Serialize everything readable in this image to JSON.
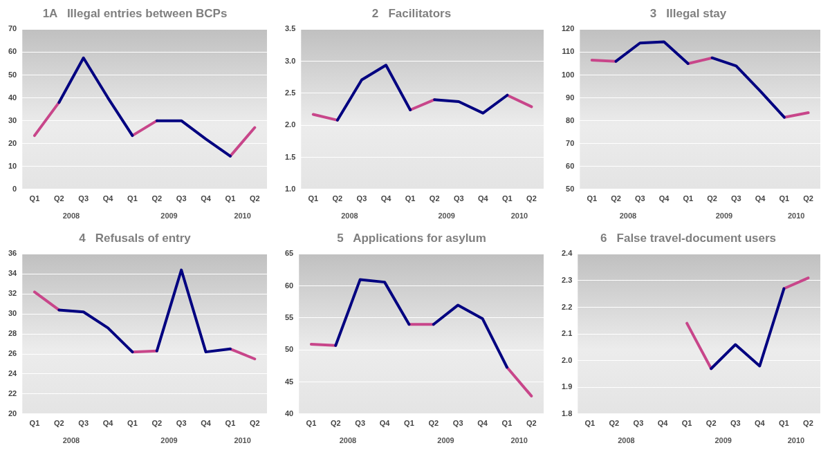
{
  "chart_data": [
    {
      "type": "line",
      "title": "1A   Illegal entries between BCPs",
      "categories": [
        "Q1",
        "Q2",
        "Q3",
        "Q4",
        "Q1",
        "Q2",
        "Q3",
        "Q4",
        "Q1",
        "Q2"
      ],
      "annotations": [
        "2008",
        "2009",
        "2010"
      ],
      "ylim": [
        0,
        70
      ],
      "yticks": [
        0,
        10,
        20,
        30,
        40,
        50,
        60,
        70
      ],
      "grid": "y",
      "legend": false,
      "marker": "none",
      "series": [
        {
          "color": "#000080",
          "values": [
            null,
            38,
            57.5,
            40,
            23.5,
            null,
            null,
            null,
            null,
            null
          ]
        },
        {
          "color": "#000080",
          "values": [
            null,
            null,
            null,
            null,
            null,
            30,
            30,
            22,
            14.5,
            null
          ]
        },
        {
          "color": "#c8468a",
          "values": [
            23.5,
            38,
            null,
            null,
            23.5,
            30,
            null,
            null,
            14.5,
            27
          ]
        }
      ]
    },
    {
      "type": "line",
      "title": "2   Facilitators",
      "categories": [
        "Q1",
        "Q2",
        "Q3",
        "Q4",
        "Q1",
        "Q2",
        "Q3",
        "Q4",
        "Q1",
        "Q2"
      ],
      "annotations": [
        "2008",
        "2009",
        "2010"
      ],
      "ylim": [
        1.0,
        3.5
      ],
      "yticks": [
        {
          "value": 1,
          "label": "1.0"
        },
        1.5,
        {
          "value": 2,
          "label": "2.0"
        },
        2.5,
        {
          "value": 3,
          "label": "3.0"
        },
        3.5
      ],
      "grid": "y",
      "legend": false,
      "marker": "none",
      "series": [
        {
          "color": "#000080",
          "values": [
            null,
            2.08,
            2.71,
            2.94,
            2.24,
            null,
            null,
            null,
            null,
            null
          ]
        },
        {
          "color": "#000080",
          "values": [
            null,
            null,
            null,
            null,
            null,
            2.4,
            2.37,
            2.19,
            2.47,
            null
          ]
        },
        {
          "color": "#c8468a",
          "values": [
            2.17,
            2.08,
            null,
            null,
            2.24,
            2.4,
            null,
            null,
            2.47,
            2.29
          ]
        }
      ]
    },
    {
      "type": "line",
      "title": "3   Illegal stay",
      "categories": [
        "Q1",
        "Q2",
        "Q3",
        "Q4",
        "Q1",
        "Q2",
        "Q3",
        "Q4",
        "Q1",
        "Q2"
      ],
      "annotations": [
        "2008",
        "2009",
        "2010"
      ],
      "ylim": [
        50,
        120
      ],
      "yticks": [
        50,
        60,
        70,
        80,
        90,
        100,
        110,
        120
      ],
      "grid": "y",
      "legend": false,
      "marker": "none",
      "series": [
        {
          "color": "#000080",
          "values": [
            null,
            106,
            114,
            114.5,
            105,
            null,
            null,
            null,
            null,
            null
          ]
        },
        {
          "color": "#000080",
          "values": [
            null,
            null,
            null,
            null,
            null,
            107.5,
            104,
            93,
            81.5,
            null
          ]
        },
        {
          "color": "#c8468a",
          "values": [
            106.5,
            106,
            null,
            null,
            105,
            107.5,
            null,
            null,
            81.5,
            83.5
          ]
        }
      ]
    },
    {
      "type": "line",
      "title": "4   Refusals of entry",
      "categories": [
        "Q1",
        "Q2",
        "Q3",
        "Q4",
        "Q1",
        "Q2",
        "Q3",
        "Q4",
        "Q1",
        "Q2"
      ],
      "annotations": [
        "2008",
        "2009",
        "2010"
      ],
      "ylim": [
        20,
        36
      ],
      "yticks": [
        20,
        22,
        24,
        26,
        28,
        30,
        32,
        34,
        36
      ],
      "grid": "y",
      "legend": false,
      "marker": "none",
      "series": [
        {
          "color": "#000080",
          "values": [
            null,
            30.4,
            30.2,
            28.6,
            26.2,
            null,
            null,
            null,
            null,
            null
          ]
        },
        {
          "color": "#000080",
          "values": [
            null,
            null,
            null,
            null,
            null,
            26.3,
            34.4,
            26.2,
            26.5,
            null
          ]
        },
        {
          "color": "#c8468a",
          "values": [
            32.2,
            30.4,
            null,
            null,
            26.2,
            26.3,
            null,
            null,
            26.5,
            25.5
          ]
        }
      ]
    },
    {
      "type": "line",
      "title": "5   Applications for asylum",
      "categories": [
        "Q1",
        "Q2",
        "Q3",
        "Q4",
        "Q1",
        "Q2",
        "Q3",
        "Q4",
        "Q1",
        "Q2"
      ],
      "annotations": [
        "2008",
        "2009",
        "2010"
      ],
      "ylim": [
        40,
        65
      ],
      "yticks": [
        40,
        45,
        50,
        55,
        60,
        65
      ],
      "grid": "y",
      "legend": false,
      "marker": "none",
      "series": [
        {
          "color": "#000080",
          "values": [
            null,
            50.7,
            61,
            60.6,
            54,
            null,
            null,
            null,
            null,
            null
          ]
        },
        {
          "color": "#000080",
          "values": [
            null,
            null,
            null,
            null,
            null,
            54,
            57,
            54.9,
            47.3,
            null
          ]
        },
        {
          "color": "#c8468a",
          "values": [
            50.9,
            50.7,
            null,
            null,
            54,
            54,
            null,
            null,
            47.3,
            42.8
          ]
        }
      ]
    },
    {
      "type": "line",
      "title": "6   False travel-document users",
      "categories": [
        "Q1",
        "Q2",
        "Q3",
        "Q4",
        "Q1",
        "Q2",
        "Q3",
        "Q4",
        "Q1",
        "Q2"
      ],
      "annotations": [
        "2008",
        "2009",
        "2010"
      ],
      "ylim": [
        1.8,
        2.4
      ],
      "yticks": [
        1.8,
        1.9,
        {
          "value": 2,
          "label": "2.0"
        },
        2.1,
        2.2,
        2.3,
        2.4
      ],
      "grid": "y",
      "legend": false,
      "marker": "none",
      "series": [
        {
          "color": "#000080",
          "values": [
            null,
            null,
            null,
            null,
            null,
            1.97,
            2.06,
            1.98,
            2.27,
            null
          ]
        },
        {
          "color": "#c8468a",
          "values": [
            null,
            null,
            null,
            null,
            2.14,
            1.97,
            null,
            null,
            2.27,
            2.31
          ]
        }
      ]
    }
  ]
}
